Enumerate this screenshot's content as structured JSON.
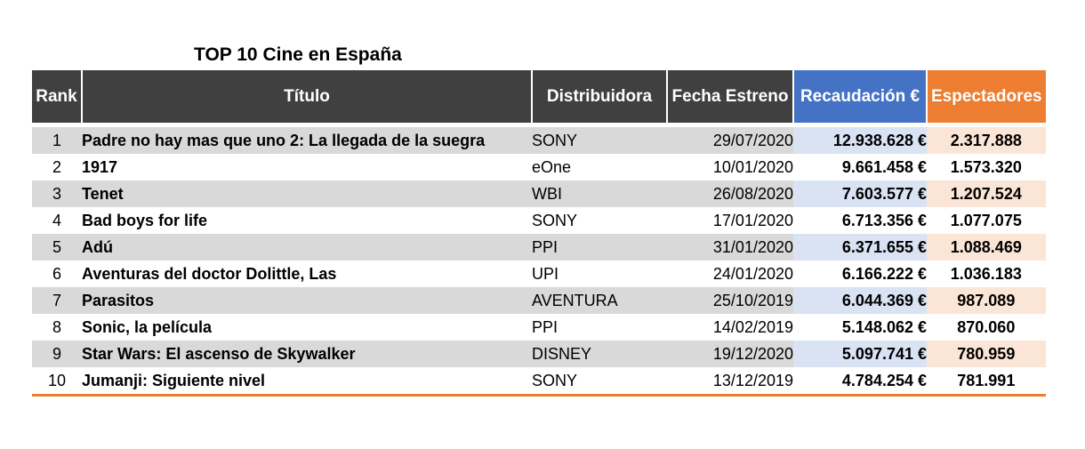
{
  "chart_data": {
    "type": "table",
    "title": "TOP 10 Cine en España",
    "columns": [
      "Rank",
      "Título",
      "Distribuidora",
      "Fecha Estreno",
      "Recaudación €",
      "Espectadores"
    ],
    "rows": [
      [
        "1",
        "Padre no hay mas que uno 2: La llegada de la suegra",
        "SONY",
        "29/07/2020",
        "12.938.628 €",
        "2.317.888"
      ],
      [
        "2",
        "1917",
        "eOne",
        "10/01/2020",
        "9.661.458 €",
        "1.573.320"
      ],
      [
        "3",
        "Tenet",
        "WBI",
        "26/08/2020",
        "7.603.577 €",
        "1.207.524"
      ],
      [
        "4",
        "Bad boys for life",
        "SONY",
        "17/01/2020",
        "6.713.356 €",
        "1.077.075"
      ],
      [
        "5",
        "Adú",
        "PPI",
        "31/01/2020",
        "6.371.655 €",
        "1.088.469"
      ],
      [
        "6",
        "Aventuras del doctor Dolittle, Las",
        "UPI",
        "24/01/2020",
        "6.166.222 €",
        "1.036.183"
      ],
      [
        "7",
        "Parasitos",
        "AVENTURA",
        "25/10/2019",
        "6.044.369 €",
        "987.089"
      ],
      [
        "8",
        "Sonic, la película",
        "PPI",
        "14/02/2019",
        "5.148.062 €",
        "870.060"
      ],
      [
        "9",
        "Star Wars: El ascenso de Skywalker",
        "DISNEY",
        "19/12/2020",
        "5.097.741 €",
        "780.959"
      ],
      [
        "10",
        "Jumanji: Siguiente nivel",
        "SONY",
        "13/12/2019",
        "4.784.254 €",
        "781.991"
      ]
    ],
    "colors": {
      "header_dark": "#404040",
      "header_recaudacion": "#4472c4",
      "header_espectadores": "#ed7d31",
      "row_band": "#d9d9d9",
      "band_recaudacion": "#dae3f3",
      "band_espectadores": "#fbe5d6",
      "bottom_rule": "#ed7d31"
    }
  }
}
